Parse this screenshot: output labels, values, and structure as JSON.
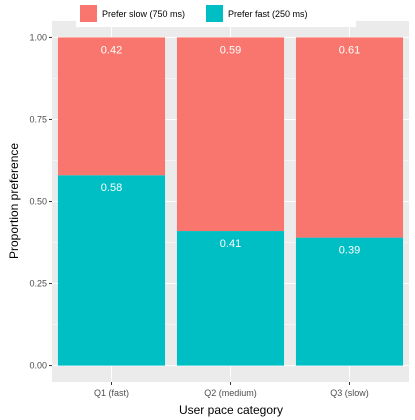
{
  "chart_data": {
    "type": "bar",
    "stacked": true,
    "categories": [
      "Q1 (fast)",
      "Q2 (medium)",
      "Q3 (slow)"
    ],
    "series": [
      {
        "name": "Prefer fast (250 ms)",
        "values": [
          0.58,
          0.41,
          0.39
        ],
        "labels": [
          "0.58",
          "0.41",
          "0.39"
        ],
        "color": "#00BFC4"
      },
      {
        "name": "Prefer slow (750 ms)",
        "values": [
          0.42,
          0.59,
          0.61
        ],
        "labels": [
          "0.42",
          "0.59",
          "0.61"
        ],
        "color": "#F8766D"
      }
    ],
    "title": "",
    "xlabel": "User pace category",
    "ylabel": "Proportion preference",
    "ylim": [
      0,
      1
    ],
    "yticks": [
      0,
      0.25,
      0.5,
      0.75,
      1
    ],
    "ytick_labels": [
      "0.00",
      "0.25",
      "0.50",
      "0.75",
      "1.00"
    ],
    "legend": {
      "position": "top",
      "entries": [
        {
          "label": "Prefer slow (750 ms)",
          "color": "#F8766D"
        },
        {
          "label": "Prefer fast (250 ms)",
          "color": "#00BFC4"
        }
      ]
    },
    "grid": true,
    "panel_background": "#EBEBEB",
    "grid_color": "#FFFFFF"
  }
}
